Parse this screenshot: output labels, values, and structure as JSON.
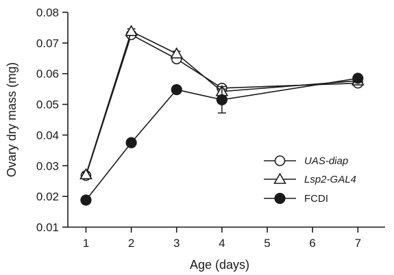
{
  "chart_data": {
    "type": "line",
    "xlabel": "Age (days)",
    "ylabel": "Ovary dry mass (mg)",
    "xlim": [
      0.6,
      7.6
    ],
    "ylim": [
      0.01,
      0.08
    ],
    "x_ticks": [
      "1",
      "2",
      "3",
      "4",
      "5",
      "6",
      "7"
    ],
    "y_ticks": [
      "0.01",
      "0.02",
      "0.03",
      "0.04",
      "0.05",
      "0.06",
      "0.07",
      "0.08"
    ],
    "legend_position": "right",
    "series": [
      {
        "name": "UAS-diap",
        "italic": true,
        "marker": "circle-open",
        "x": [
          1,
          2,
          3,
          4,
          7
        ],
        "values": [
          0.0268,
          0.0727,
          0.0648,
          0.0553,
          0.0569
        ],
        "error": [
          0.0006,
          0.0008,
          0.0008,
          0.0008,
          0.0007
        ]
      },
      {
        "name": "Lsp2-GAL4",
        "italic": true,
        "marker": "triangle-open",
        "x": [
          1,
          2,
          3,
          4,
          7
        ],
        "values": [
          0.0271,
          0.0738,
          0.0665,
          0.0542,
          0.0577
        ],
        "error": [
          0.0006,
          0.0008,
          0.0008,
          0.0008,
          0.0007
        ]
      },
      {
        "name": "FCDI",
        "italic": false,
        "marker": "circle-filled",
        "x": [
          1,
          2,
          3,
          4,
          7
        ],
        "values": [
          0.0188,
          0.0375,
          0.0548,
          0.0515,
          0.0585
        ],
        "error": [
          0.0005,
          0.0006,
          0.0007,
          0.0043,
          0.0007
        ]
      }
    ]
  }
}
